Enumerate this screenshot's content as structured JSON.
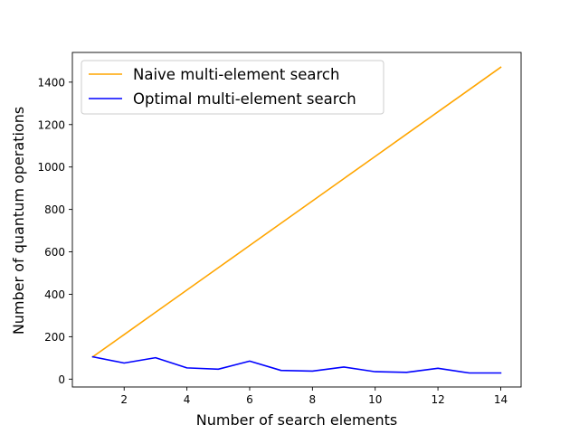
{
  "chart_data": {
    "type": "line",
    "title": "",
    "xlabel": "Number of search elements",
    "ylabel": "Number of quantum operations",
    "xlim": [
      0.35,
      14.65
    ],
    "ylim": [
      -37,
      1540
    ],
    "xticks": [
      2,
      4,
      6,
      8,
      10,
      12,
      14
    ],
    "yticks": [
      0,
      200,
      400,
      600,
      800,
      1000,
      1200,
      1400
    ],
    "grid": false,
    "legend_position": "top-left",
    "series": [
      {
        "name": "Naive multi-element search",
        "color": "#ffa500",
        "x": [
          1,
          2,
          3,
          4,
          5,
          6,
          7,
          8,
          9,
          10,
          11,
          12,
          13,
          14
        ],
        "values": [
          105,
          210,
          315,
          420,
          525,
          630,
          735,
          840,
          945,
          1050,
          1155,
          1260,
          1365,
          1470
        ]
      },
      {
        "name": "Optimal multi-element search",
        "color": "#0000ff",
        "x": [
          1,
          2,
          3,
          4,
          5,
          6,
          7,
          8,
          9,
          10,
          11,
          12,
          13,
          14
        ],
        "values": [
          105,
          76,
          101,
          53,
          47,
          85,
          41,
          38,
          57,
          35,
          32,
          51,
          29,
          29
        ]
      }
    ]
  }
}
